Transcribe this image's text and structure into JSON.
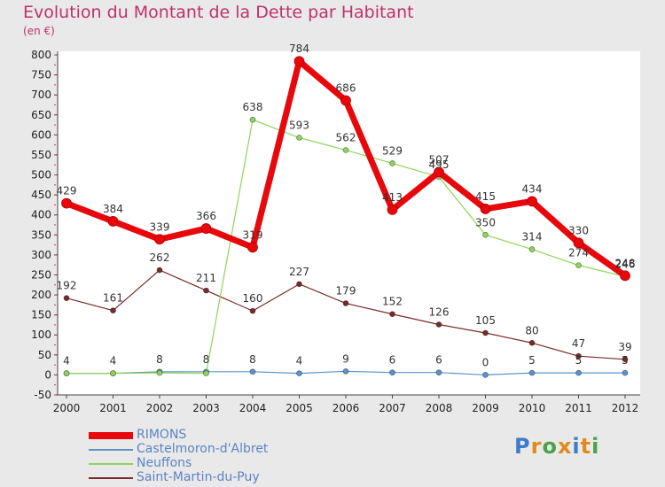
{
  "title": "Evolution du Montant de la Dette par Habitant",
  "subtitle": "(en €)",
  "logo": {
    "text": "Proxiti",
    "colors": [
      "#3d7cc9",
      "#e08a1e",
      "#4aa34a",
      "#e08a1e",
      "#3d7cc9",
      "#e08a1e",
      "#4aa34a"
    ]
  },
  "chart_data": {
    "type": "line",
    "title": "Evolution du Montant de la Dette par Habitant",
    "ylabel": "(en €)",
    "xlabel": "",
    "x": [
      "2000",
      "2001",
      "2002",
      "2003",
      "2004",
      "2005",
      "2006",
      "2007",
      "2008",
      "2009",
      "2010",
      "2011",
      "2012"
    ],
    "ylim": [
      -50,
      800
    ],
    "yticks": [
      -50,
      0,
      50,
      100,
      150,
      200,
      250,
      300,
      350,
      400,
      450,
      500,
      550,
      600,
      650,
      700,
      750,
      800
    ],
    "grid": false,
    "legend_position": "bottom-left",
    "series": [
      {
        "name": "RIMONS",
        "color": "#e8080c",
        "values": [
          429,
          384,
          339,
          366,
          319,
          784,
          686,
          413,
          507,
          415,
          434,
          330,
          248
        ]
      },
      {
        "name": "Castelmoron-d'Albret",
        "color": "#5b93c9",
        "values": [
          4,
          4,
          8,
          8,
          8,
          4,
          9,
          6,
          6,
          0,
          5,
          5,
          5
        ]
      },
      {
        "name": "Neuffons",
        "color": "#8fd45a",
        "values": [
          4,
          4,
          5,
          4,
          638,
          593,
          562,
          529,
          495,
          350,
          314,
          274,
          246
        ]
      },
      {
        "name": "Saint-Martin-du-Puy",
        "color": "#7a2a2a",
        "values": [
          192,
          161,
          262,
          211,
          160,
          227,
          179,
          152,
          126,
          105,
          80,
          47,
          39
        ]
      }
    ]
  }
}
